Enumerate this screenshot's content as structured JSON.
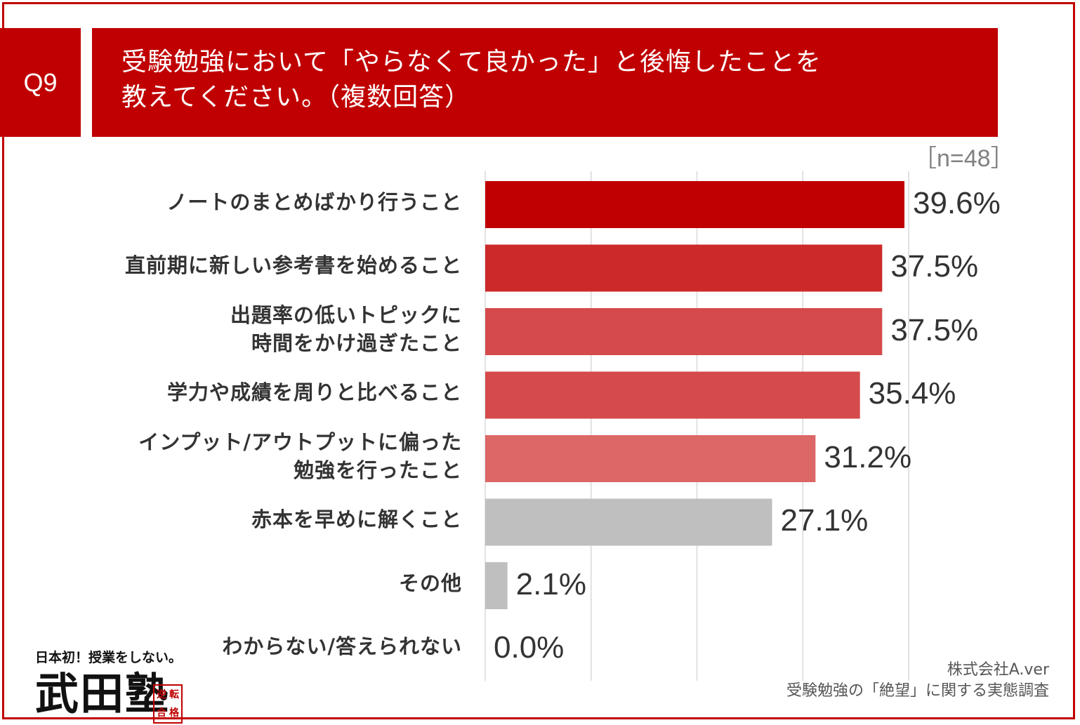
{
  "question": {
    "badge": "Q9",
    "title_lines": [
      "受験勉強において「やらなくて良かった」と後悔したことを",
      "教えてください。（複数回答）"
    ]
  },
  "sample_size": "［n=48］",
  "chart_data": {
    "type": "bar",
    "orientation": "horizontal",
    "title": "受験勉強において「やらなくて良かった」と後悔したことを教えてください。（複数回答）",
    "categories": [
      [
        "ノートのまとめばかり行うこと"
      ],
      [
        "直前期に新しい参考書を始めること"
      ],
      [
        "出題率の低いトピックに",
        "時間をかけ過ぎたこと"
      ],
      [
        "学力や成績を周りと比べること"
      ],
      [
        "インプット/アウトプットに偏った",
        "勉強を行ったこと"
      ],
      [
        "赤本を早めに解くこと"
      ],
      [
        "その他"
      ],
      [
        "わからない/答えられない"
      ]
    ],
    "values": [
      39.6,
      37.5,
      37.5,
      35.4,
      31.2,
      27.1,
      2.1,
      0.0
    ],
    "value_labels": [
      "39.6%",
      "37.5%",
      "37.5%",
      "35.4%",
      "31.2%",
      "27.1%",
      "2.1%",
      "0.0%"
    ],
    "bar_colors": [
      "#c00000",
      "#cc2a2a",
      "#d54a4a",
      "#d54a4a",
      "#dc6767",
      "#bfbfbf",
      "#bfbfbf",
      "#bfbfbf"
    ],
    "xlim": [
      0,
      40
    ],
    "grid": true,
    "gridline_values": [
      0,
      10,
      20,
      30,
      40
    ],
    "xlabel": "",
    "ylabel": ""
  },
  "logo": {
    "tagline": "日本初！授業をしない。",
    "name": "武田塾",
    "stamp": [
      "逆",
      "転",
      "合",
      "格"
    ]
  },
  "source": {
    "company": "株式会社A.ver",
    "survey": "受験勉強の「絶望」に関する実態調査"
  },
  "colors": {
    "brand_red": "#c00000",
    "grid": "#d9d9d9",
    "text": "#333333"
  }
}
